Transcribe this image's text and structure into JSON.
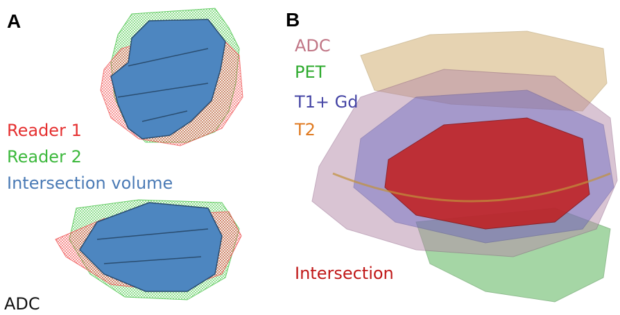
{
  "panels": [
    {
      "label": "A",
      "legend": [
        "Reader 1",
        "Reader 2",
        "Intersection volume"
      ],
      "caption": "ADC"
    },
    {
      "label": "B",
      "legend": [
        "ADC",
        "PET",
        "T1+ Gd",
        "T2"
      ],
      "footer": "Intersection"
    }
  ]
}
